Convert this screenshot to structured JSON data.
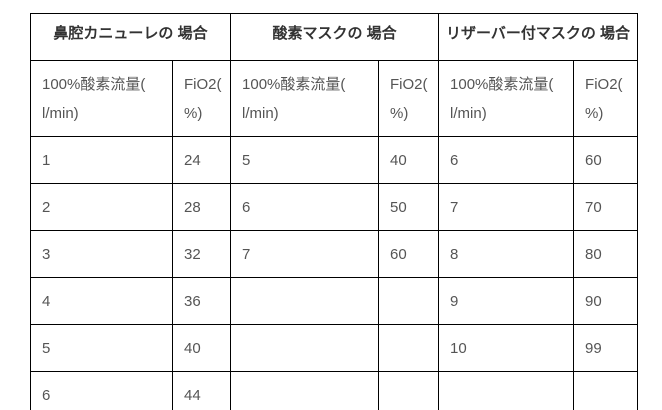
{
  "table": {
    "sections": [
      {
        "title": "鼻腔カニューレの 場合"
      },
      {
        "title": "酸素マスクの 場合"
      },
      {
        "title": "リザーバー付マスクの 場合"
      }
    ],
    "subheaders": {
      "flow": "100%酸素流量(\nl/min)",
      "fio2": "FiO2(\n%)"
    },
    "rows": [
      [
        "1",
        "24",
        "5",
        "40",
        "6",
        "60"
      ],
      [
        "2",
        "28",
        "6",
        "50",
        "7",
        "70"
      ],
      [
        "3",
        "32",
        "7",
        "60",
        "8",
        "80"
      ],
      [
        "4",
        "36",
        "",
        "",
        "9",
        "90"
      ],
      [
        "5",
        "40",
        "",
        "",
        "10",
        "99"
      ],
      [
        "6",
        "44",
        "",
        "",
        "",
        ""
      ]
    ],
    "colors": {
      "border": "#000000",
      "header_text": "#333333",
      "cell_text": "#555555",
      "background": "#ffffff"
    }
  }
}
